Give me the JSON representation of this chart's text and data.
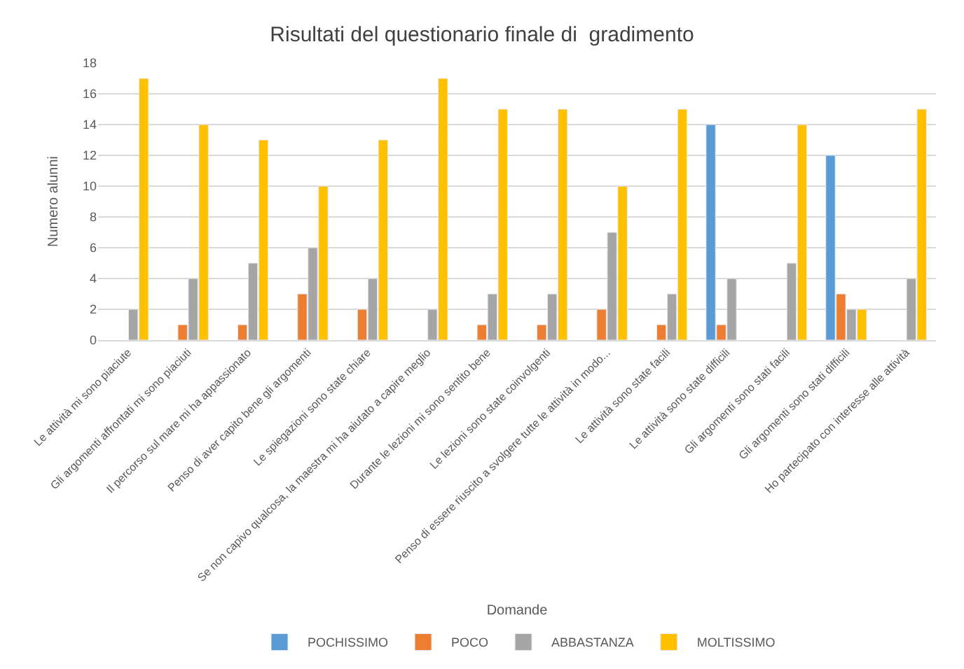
{
  "chart_data": {
    "type": "bar",
    "title": "Risultati del questionario finale di  gradimento",
    "xlabel": "Domande",
    "ylabel": "Numero alunni",
    "categories": [
      "Le attività mi sono piaciute",
      "Gli argomenti affrontati mi sono piaciuti",
      "Il percorso sul mare mi ha appassionato",
      "Penso di aver capito bene gli argomenti",
      "Le spiegazioni sono state chiare",
      "Se non capivo qualcosa, la maestra mi ha aiutato a capire meglio",
      "Durante le lezioni mi sono sentito bene",
      "Le lezioni sono state coinvolgenti",
      "Penso di essere riuscito a svolgere tutte le attività in modo...",
      "Le attività sono state facili",
      "Le attività sono state difficili",
      "Gli argomenti sono stati facili",
      "Gli argomenti sono stati difficili",
      "Ho partecipato con interesse alle attività"
    ],
    "series": [
      {
        "name": "POCHISSIMO",
        "color": "#5b9bd5",
        "values": [
          null,
          null,
          null,
          null,
          null,
          null,
          null,
          null,
          null,
          null,
          14,
          null,
          12,
          null
        ]
      },
      {
        "name": "POCO",
        "color": "#ed7d31",
        "values": [
          null,
          1,
          1,
          3,
          2,
          null,
          1,
          1,
          2,
          1,
          1,
          null,
          3,
          null
        ]
      },
      {
        "name": "ABBASTANZA",
        "color": "#a5a5a5",
        "values": [
          2,
          4,
          5,
          6,
          4,
          2,
          3,
          3,
          7,
          3,
          4,
          5,
          2,
          4
        ]
      },
      {
        "name": "MOLTISSIMO",
        "color": "#ffc000",
        "values": [
          17,
          14,
          13,
          10,
          13,
          17,
          15,
          15,
          10,
          15,
          null,
          14,
          2,
          15
        ]
      }
    ],
    "ylim": [
      0,
      18
    ],
    "yticks": [
      0,
      2,
      4,
      6,
      8,
      10,
      12,
      14,
      16,
      18
    ],
    "grid": "y",
    "legend": "bottom"
  }
}
